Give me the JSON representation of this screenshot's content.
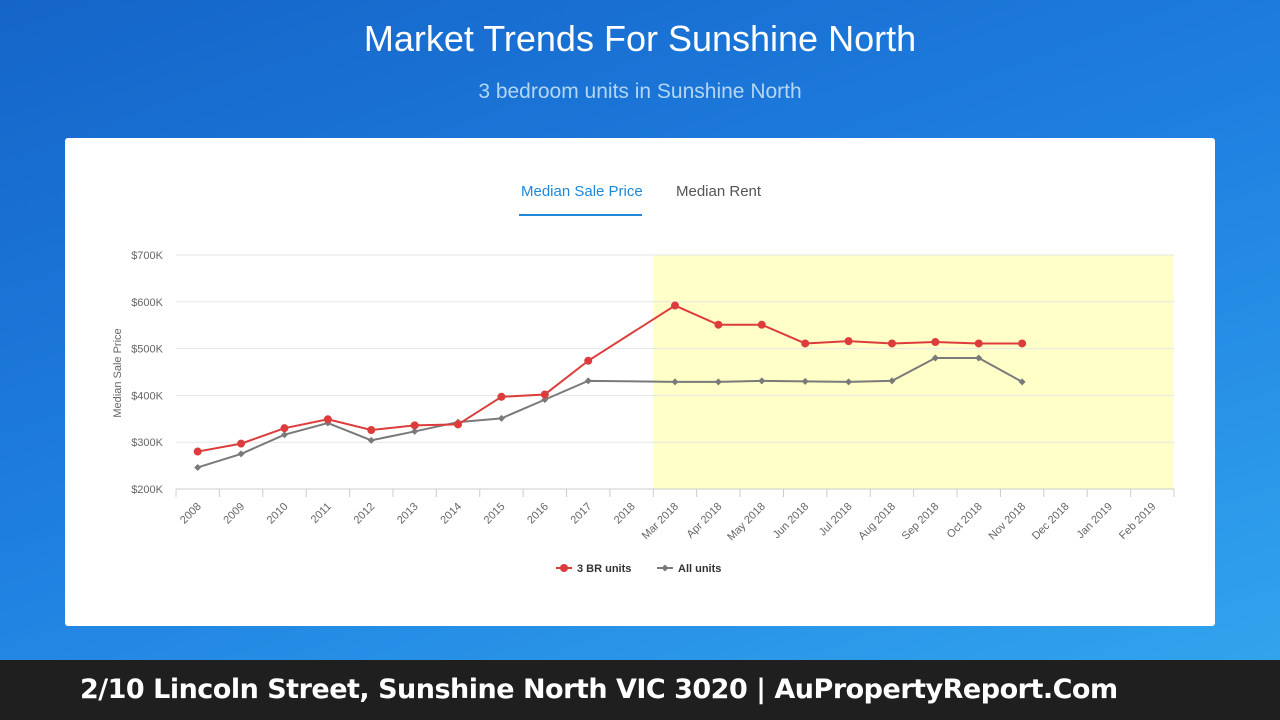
{
  "header": {
    "title": "Market Trends For Sunshine North",
    "subtitle": "3 bedroom units in Sunshine North"
  },
  "tabs": {
    "active": "Median Sale Price",
    "inactive": "Median Rent"
  },
  "chart_data": {
    "type": "line",
    "ylabel": "Median Sale Price",
    "ylim": [
      200000,
      700000
    ],
    "yticks": [
      200000,
      300000,
      400000,
      500000,
      600000,
      700000
    ],
    "ytick_labels": [
      "$200K",
      "$300K",
      "$400K",
      "$500K",
      "$600K",
      "$700K"
    ],
    "categories": [
      "2008",
      "2009",
      "2010",
      "2011",
      "2012",
      "2013",
      "2014",
      "2015",
      "2016",
      "2017",
      "2018",
      "Mar 2018",
      "Apr 2018",
      "May 2018",
      "Jun 2018",
      "Jul 2018",
      "Aug 2018",
      "Sep 2018",
      "Oct 2018",
      "Nov 2018",
      "Dec 2018",
      "Jan 2019",
      "Feb 2019"
    ],
    "highlight": {
      "from": "Mar 2018",
      "to": "Feb 2019",
      "color": "#ffffc8"
    },
    "grid": true,
    "legend_position": "bottom",
    "series": [
      {
        "name": "3 BR units",
        "color": "#dd3c3c",
        "marker": "circle",
        "values": [
          280000,
          297000,
          330000,
          349000,
          326000,
          336000,
          338000,
          397000,
          402000,
          474000,
          null,
          592000,
          551000,
          551000,
          511000,
          516000,
          511000,
          514000,
          511000,
          511000,
          null,
          null,
          null
        ]
      },
      {
        "name": "All units",
        "color": "#7a7a7a",
        "marker": "diamond",
        "values": [
          246000,
          275000,
          316000,
          341000,
          304000,
          323000,
          343000,
          351000,
          391000,
          431000,
          null,
          429000,
          429000,
          431000,
          430000,
          429000,
          431000,
          480000,
          480000,
          429000,
          null,
          null,
          null
        ]
      }
    ]
  },
  "footer": {
    "text": "2/10 Lincoln Street, Sunshine North VIC 3020 | AuPropertyReport.Com"
  }
}
